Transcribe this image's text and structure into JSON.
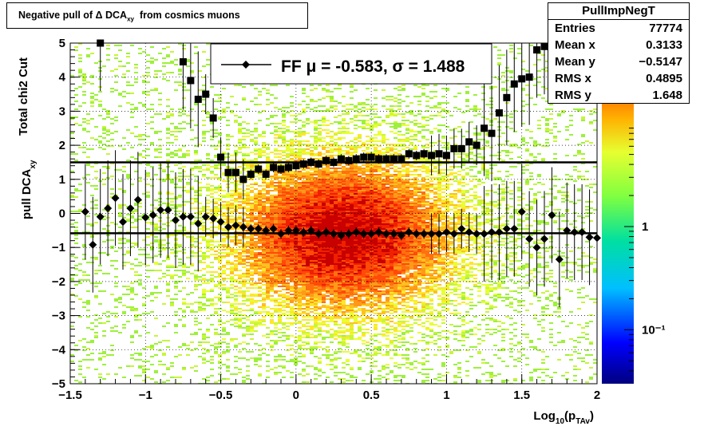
{
  "title": {
    "main": "Negative pull of Δ DCA",
    "sub": "xy",
    "tail": "from cosmics muons"
  },
  "stats": {
    "name": "PullImpNegT",
    "rows": [
      {
        "label": "Entries",
        "value": "77774"
      },
      {
        "label": "Mean x",
        "value": "0.3133"
      },
      {
        "label": "Mean y",
        "value": "−0.5147"
      },
      {
        "label": "RMS x",
        "value": "0.4895"
      },
      {
        "label": "RMS y",
        "value": "1.648"
      }
    ]
  },
  "fit_legend": {
    "text": "FF μ = -0.583, σ =   1.488"
  },
  "colors": {
    "fit_line": "#000000",
    "points": "#000000",
    "grid": "#000000"
  },
  "chart_data": {
    "type": "heatmap",
    "title": "Negative pull of Δ DCA xy from cosmics muons",
    "xlabel_main": "Log",
    "xlabel_sub1": "10",
    "xlabel_mid": "(p",
    "xlabel_sub2": "TAv",
    "xlabel_end": ")",
    "ylabel_main": "pull DCA",
    "ylabel_sub": "xy",
    "ylabel_extra": "Total chi2 Cut",
    "xlim": [
      -1.5,
      2
    ],
    "ylim": [
      -5,
      5
    ],
    "grid": true,
    "legend_placement": "top-center",
    "x_ticks": [
      "−1.5",
      "−1",
      "−0.5",
      "0",
      "0.5",
      "1",
      "1.5",
      "2"
    ],
    "y_ticks": [
      "−5",
      "−4",
      "−3",
      "−2",
      "−1",
      "0",
      "1",
      "2",
      "3",
      "4",
      "5"
    ],
    "z_scale": "log",
    "z_ticks": [
      {
        "value": 0.1,
        "label": "10⁻¹"
      },
      {
        "value": 1,
        "label": "1"
      }
    ],
    "fit_lines": {
      "mean": -0.583,
      "sigma": 1.488,
      "mean_plus_sigma": 1.5,
      "mean_minus_sigma": -0.583
    },
    "series": [
      {
        "marker": "diamond",
        "x": [
          -1.4,
          -1.35,
          -1.3,
          -1.25,
          -1.2,
          -1.15,
          -1.1,
          -1.05,
          -1.0,
          -0.95,
          -0.9,
          -0.85,
          -0.8,
          -0.75,
          -0.7,
          -0.65,
          -0.6,
          -0.55,
          -0.5,
          -0.45,
          -0.4,
          -0.35,
          -0.3,
          -0.25,
          -0.2,
          -0.15,
          -0.1,
          -0.05,
          0.0,
          0.05,
          0.1,
          0.15,
          0.2,
          0.25,
          0.3,
          0.35,
          0.4,
          0.45,
          0.5,
          0.55,
          0.6,
          0.65,
          0.7,
          0.75,
          0.8,
          0.85,
          0.9,
          0.95,
          1.0,
          1.05,
          1.1,
          1.15,
          1.2,
          1.25,
          1.3,
          1.35,
          1.4,
          1.45,
          1.5,
          1.55,
          1.6,
          1.65,
          1.7,
          1.75,
          1.8,
          1.85,
          1.9,
          1.95,
          2.0
        ],
        "y": [
          0.05,
          -0.92,
          -0.1,
          0.15,
          0.45,
          -0.25,
          0.15,
          0.4,
          -0.12,
          -0.05,
          0.1,
          0.1,
          -0.2,
          -0.1,
          -0.1,
          -0.3,
          -0.1,
          -0.15,
          -0.25,
          -0.4,
          -0.35,
          -0.4,
          -0.45,
          -0.45,
          -0.5,
          -0.45,
          -0.6,
          -0.5,
          -0.5,
          -0.55,
          -0.5,
          -0.6,
          -0.55,
          -0.6,
          -0.65,
          -0.6,
          -0.55,
          -0.6,
          -0.6,
          -0.55,
          -0.6,
          -0.6,
          -0.65,
          -0.55,
          -0.6,
          -0.6,
          -0.6,
          -0.6,
          -0.55,
          -0.6,
          -0.45,
          -0.55,
          -0.6,
          -0.6,
          -0.55,
          -0.55,
          -0.45,
          -0.45,
          0.05,
          -0.75,
          -1.0,
          -0.75,
          -0.05,
          -1.35,
          -0.5,
          -0.55,
          -0.55,
          -0.7,
          -0.72
        ]
      },
      {
        "marker": "square",
        "x": [
          -1.3,
          -0.75,
          -0.7,
          -0.65,
          -0.6,
          -0.55,
          -0.5,
          -0.45,
          -0.4,
          -0.35,
          -0.3,
          -0.25,
          -0.2,
          -0.15,
          -0.1,
          -0.05,
          0.0,
          0.05,
          0.1,
          0.15,
          0.2,
          0.25,
          0.3,
          0.35,
          0.4,
          0.45,
          0.5,
          0.55,
          0.6,
          0.65,
          0.7,
          0.75,
          0.8,
          0.85,
          0.9,
          0.95,
          1.0,
          1.05,
          1.1,
          1.15,
          1.2,
          1.25,
          1.3,
          1.35,
          1.4,
          1.45,
          1.5,
          1.55,
          1.6,
          1.65
        ],
        "y": [
          5.0,
          4.45,
          3.9,
          3.35,
          3.5,
          2.8,
          1.65,
          1.2,
          1.2,
          1.0,
          1.15,
          1.3,
          1.15,
          1.35,
          1.3,
          1.35,
          1.4,
          1.45,
          1.5,
          1.45,
          1.55,
          1.5,
          1.6,
          1.55,
          1.6,
          1.65,
          1.65,
          1.6,
          1.6,
          1.6,
          1.6,
          1.75,
          1.7,
          1.75,
          1.7,
          1.75,
          1.7,
          1.9,
          1.9,
          2.1,
          2.0,
          2.5,
          2.35,
          2.95,
          3.4,
          3.8,
          3.95,
          4.0,
          4.8,
          4.9
        ]
      }
    ]
  }
}
